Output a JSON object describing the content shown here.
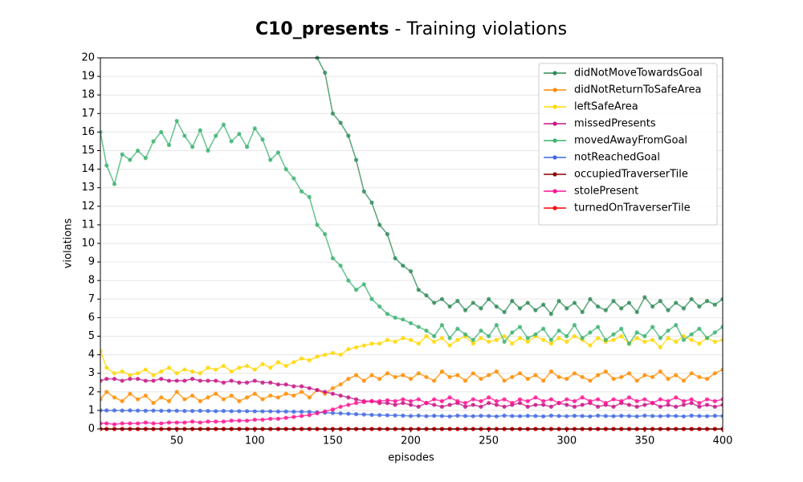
{
  "chart_data": {
    "type": "line",
    "title": "C10_presents",
    "subtitle": "- Training violations",
    "x_label": "episodes",
    "y_label": "violations",
    "xlim": [
      1,
      400
    ],
    "ylim": [
      0,
      20
    ],
    "xticks": [
      50,
      100,
      150,
      200,
      250,
      300,
      350,
      400
    ],
    "yticks": [
      0,
      1,
      2,
      3,
      4,
      5,
      6,
      7,
      8,
      9,
      10,
      11,
      12,
      13,
      14,
      15,
      16,
      17,
      18,
      19,
      20
    ],
    "grid": true,
    "legend": "upper right",
    "x": [
      1,
      5,
      10,
      15,
      20,
      25,
      30,
      35,
      40,
      45,
      50,
      55,
      60,
      65,
      70,
      75,
      80,
      85,
      90,
      95,
      100,
      105,
      110,
      115,
      120,
      125,
      130,
      135,
      140,
      145,
      150,
      155,
      160,
      165,
      170,
      175,
      180,
      185,
      190,
      195,
      200,
      205,
      210,
      215,
      220,
      225,
      230,
      235,
      240,
      245,
      250,
      255,
      260,
      265,
      270,
      275,
      280,
      285,
      290,
      295,
      300,
      305,
      310,
      315,
      320,
      325,
      330,
      335,
      340,
      345,
      350,
      355,
      360,
      365,
      370,
      375,
      380,
      385,
      390,
      395,
      400
    ],
    "series": [
      {
        "name": "didNotMoveTowardsGoal",
        "color": "#2e8b57",
        "values": [
          null,
          null,
          null,
          null,
          null,
          null,
          null,
          null,
          null,
          null,
          null,
          null,
          null,
          null,
          null,
          null,
          null,
          null,
          null,
          null,
          null,
          null,
          null,
          null,
          null,
          null,
          null,
          null,
          20.0,
          19.2,
          17.0,
          16.5,
          15.8,
          14.5,
          12.8,
          12.2,
          11.0,
          10.5,
          9.2,
          8.8,
          8.5,
          7.5,
          7.2,
          6.8,
          7.0,
          6.6,
          6.9,
          6.4,
          6.8,
          6.5,
          7.0,
          6.6,
          6.3,
          6.9,
          6.5,
          6.8,
          6.4,
          6.7,
          6.2,
          6.9,
          6.5,
          6.8,
          6.3,
          7.0,
          6.6,
          6.4,
          6.9,
          6.5,
          6.8,
          6.3,
          7.1,
          6.6,
          6.9,
          6.4,
          6.8,
          6.5,
          7.0,
          6.6,
          6.9,
          6.7,
          7.0
        ]
      },
      {
        "name": "didNotReturnToSafeArea",
        "color": "#ff8c00",
        "values": [
          1.6,
          2.0,
          1.7,
          1.5,
          1.9,
          1.6,
          1.8,
          1.4,
          1.7,
          1.5,
          2.0,
          1.6,
          1.8,
          1.5,
          1.7,
          1.9,
          1.6,
          1.8,
          1.5,
          1.7,
          1.9,
          1.6,
          1.8,
          1.7,
          1.9,
          1.8,
          2.0,
          1.7,
          2.1,
          1.9,
          2.2,
          2.4,
          2.7,
          2.9,
          2.6,
          2.9,
          2.7,
          3.0,
          2.8,
          2.9,
          2.7,
          3.0,
          2.8,
          2.6,
          3.1,
          2.8,
          2.9,
          2.6,
          3.0,
          2.7,
          2.9,
          3.1,
          2.6,
          2.8,
          3.0,
          2.7,
          2.9,
          2.6,
          3.1,
          2.8,
          2.7,
          3.0,
          2.8,
          2.6,
          2.9,
          3.1,
          2.7,
          2.8,
          3.0,
          2.6,
          2.9,
          2.8,
          3.1,
          2.7,
          2.9,
          2.6,
          3.0,
          2.8,
          2.7,
          3.0,
          3.2
        ]
      },
      {
        "name": "leftSafeArea",
        "color": "#ffd700",
        "values": [
          4.2,
          3.3,
          3.0,
          3.1,
          2.9,
          3.0,
          3.2,
          2.9,
          3.1,
          3.3,
          3.0,
          3.2,
          3.1,
          3.0,
          3.3,
          3.2,
          3.4,
          3.1,
          3.3,
          3.4,
          3.2,
          3.5,
          3.3,
          3.6,
          3.4,
          3.6,
          3.8,
          3.7,
          3.9,
          4.0,
          4.1,
          4.0,
          4.3,
          4.4,
          4.5,
          4.6,
          4.6,
          4.8,
          4.7,
          4.9,
          4.8,
          4.6,
          5.0,
          4.7,
          4.9,
          4.5,
          4.8,
          5.0,
          4.6,
          4.9,
          4.7,
          4.8,
          5.0,
          4.6,
          4.9,
          4.7,
          5.0,
          4.8,
          4.6,
          4.9,
          4.7,
          5.0,
          4.8,
          4.5,
          4.9,
          4.7,
          4.8,
          5.0,
          4.6,
          4.9,
          4.7,
          4.8,
          4.4,
          4.9,
          4.7,
          5.0,
          4.8,
          4.6,
          4.9,
          4.7,
          4.8
        ]
      },
      {
        "name": "missedPresents",
        "color": "#c71585",
        "values": [
          2.6,
          2.7,
          2.7,
          2.6,
          2.7,
          2.7,
          2.6,
          2.6,
          2.7,
          2.6,
          2.6,
          2.6,
          2.7,
          2.6,
          2.6,
          2.6,
          2.5,
          2.6,
          2.5,
          2.5,
          2.6,
          2.5,
          2.5,
          2.4,
          2.4,
          2.3,
          2.3,
          2.2,
          2.1,
          2.0,
          1.9,
          1.8,
          1.7,
          1.6,
          1.5,
          1.5,
          1.4,
          1.4,
          1.3,
          1.4,
          1.3,
          1.2,
          1.4,
          1.3,
          1.2,
          1.3,
          1.4,
          1.2,
          1.3,
          1.2,
          1.4,
          1.3,
          1.2,
          1.3,
          1.4,
          1.2,
          1.3,
          1.3,
          1.2,
          1.4,
          1.3,
          1.2,
          1.3,
          1.4,
          1.2,
          1.3,
          1.2,
          1.4,
          1.3,
          1.2,
          1.3,
          1.4,
          1.2,
          1.3,
          1.2,
          1.3,
          1.4,
          1.2,
          1.3,
          1.2,
          1.3
        ]
      },
      {
        "name": "movedAwayFromGoal",
        "color": "#3cb371",
        "values": [
          16.0,
          14.2,
          13.2,
          14.8,
          14.5,
          15.0,
          14.6,
          15.5,
          16.0,
          15.3,
          16.6,
          15.8,
          15.2,
          16.1,
          15.0,
          15.8,
          16.4,
          15.5,
          15.9,
          15.2,
          16.2,
          15.6,
          14.5,
          14.9,
          14.0,
          13.5,
          12.8,
          12.5,
          11.0,
          10.5,
          9.2,
          8.8,
          8.0,
          7.5,
          7.8,
          7.0,
          6.6,
          6.2,
          6.0,
          5.9,
          5.7,
          5.5,
          5.3,
          5.0,
          5.6,
          4.9,
          5.4,
          5.1,
          4.8,
          5.3,
          5.0,
          5.6,
          4.7,
          5.2,
          5.5,
          4.9,
          5.1,
          5.4,
          4.8,
          5.3,
          5.0,
          5.6,
          4.9,
          5.2,
          5.5,
          4.8,
          5.1,
          5.4,
          4.6,
          5.2,
          5.0,
          5.5,
          4.9,
          5.3,
          5.6,
          4.8,
          5.1,
          5.4,
          4.9,
          5.2,
          5.5
        ]
      },
      {
        "name": "notReachedGoal",
        "color": "#4169e1",
        "values": [
          1.0,
          1.0,
          1.0,
          0.99,
          1.0,
          0.99,
          0.98,
          0.99,
          0.98,
          0.98,
          0.98,
          0.97,
          0.97,
          0.98,
          0.97,
          0.96,
          0.97,
          0.96,
          0.96,
          0.96,
          0.95,
          0.95,
          0.95,
          0.94,
          0.94,
          0.93,
          0.93,
          0.92,
          0.9,
          0.88,
          0.86,
          0.84,
          0.82,
          0.8,
          0.78,
          0.76,
          0.75,
          0.74,
          0.73,
          0.72,
          0.7,
          0.72,
          0.69,
          0.71,
          0.7,
          0.68,
          0.72,
          0.7,
          0.69,
          0.71,
          0.7,
          0.68,
          0.72,
          0.7,
          0.69,
          0.71,
          0.7,
          0.68,
          0.72,
          0.7,
          0.69,
          0.71,
          0.7,
          0.68,
          0.72,
          0.7,
          0.69,
          0.71,
          0.7,
          0.68,
          0.72,
          0.7,
          0.69,
          0.71,
          0.7,
          0.68,
          0.72,
          0.7,
          0.69,
          0.71,
          0.7
        ]
      },
      {
        "name": "occupiedTraverserTile",
        "color": "#8b0000",
        "values": [
          0,
          0,
          0,
          0,
          0,
          0,
          0,
          0,
          0,
          0,
          0,
          0,
          0,
          0,
          0,
          0,
          0,
          0,
          0,
          0,
          0,
          0,
          0,
          0,
          0,
          0,
          0,
          0,
          0,
          0,
          0,
          0,
          0,
          0,
          0,
          0,
          0,
          0,
          0,
          0,
          0,
          0,
          0,
          0,
          0,
          0,
          0,
          0,
          0,
          0,
          0,
          0,
          0,
          0,
          0,
          0,
          0,
          0,
          0,
          0,
          0,
          0,
          0,
          0,
          0,
          0,
          0,
          0,
          0,
          0,
          0,
          0,
          0,
          0,
          0,
          0,
          0,
          0,
          0,
          0,
          0
        ]
      },
      {
        "name": "stolePresent",
        "color": "#ff1493",
        "values": [
          0.3,
          0.3,
          0.25,
          0.3,
          0.3,
          0.3,
          0.35,
          0.3,
          0.3,
          0.35,
          0.35,
          0.35,
          0.4,
          0.35,
          0.4,
          0.4,
          0.4,
          0.45,
          0.45,
          0.45,
          0.5,
          0.5,
          0.55,
          0.55,
          0.6,
          0.65,
          0.7,
          0.75,
          0.85,
          0.95,
          1.05,
          1.2,
          1.3,
          1.4,
          1.45,
          1.5,
          1.5,
          1.55,
          1.5,
          1.6,
          1.5,
          1.6,
          1.4,
          1.6,
          1.5,
          1.7,
          1.5,
          1.4,
          1.6,
          1.5,
          1.7,
          1.5,
          1.6,
          1.4,
          1.6,
          1.5,
          1.7,
          1.5,
          1.6,
          1.4,
          1.6,
          1.5,
          1.7,
          1.5,
          1.6,
          1.4,
          1.6,
          1.5,
          1.7,
          1.5,
          1.6,
          1.4,
          1.6,
          1.5,
          1.7,
          1.5,
          1.6,
          1.4,
          1.6,
          1.5,
          1.6
        ]
      },
      {
        "name": "turnedOnTraverserTile",
        "color": "#ff0000",
        "values": [
          0,
          0,
          0,
          0,
          0,
          0,
          0,
          0,
          0,
          0,
          0,
          0,
          0,
          0,
          0,
          0,
          0,
          0,
          0,
          0,
          0,
          0,
          0,
          0,
          0,
          0,
          0,
          0,
          0,
          0,
          0,
          0,
          0,
          0,
          0,
          0,
          0,
          0,
          0,
          0,
          0,
          0,
          0,
          0,
          0,
          0,
          0,
          0,
          0,
          0,
          0,
          0,
          0,
          0,
          0,
          0,
          0,
          0,
          0,
          0,
          0,
          0,
          0,
          0,
          0,
          0,
          0,
          0,
          0,
          0,
          0,
          0,
          0,
          0,
          0,
          0,
          0,
          0,
          0,
          0,
          0
        ]
      }
    ]
  }
}
